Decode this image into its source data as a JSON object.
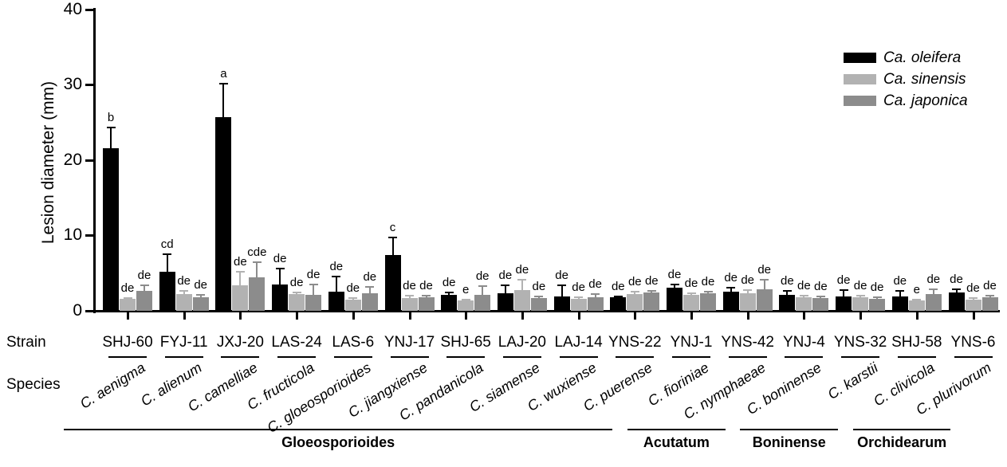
{
  "axis_rows": {
    "strain": "Strain",
    "species": "Species"
  },
  "legend": {
    "position": "top-right",
    "items": [
      {
        "label": "Ca. oleifera",
        "color": "#000000"
      },
      {
        "label": "Ca. sinensis",
        "color": "#b2b2b2"
      },
      {
        "label": "Ca. japonica",
        "color": "#8c8c8c"
      }
    ]
  },
  "chart_data": {
    "type": "bar",
    "title": "",
    "xlabel": "",
    "ylabel": "Lesion diameter (mm)",
    "ylim": [
      0,
      40
    ],
    "yticks": [
      0,
      10,
      20,
      30,
      40
    ],
    "grid": false,
    "legend_position": "top-right",
    "error_bars": "upper, with caps",
    "significance_letters": "shown above error bars",
    "categories": [
      "SHJ-60",
      "FYJ-11",
      "JXJ-20",
      "LAS-24",
      "LAS-6",
      "YNJ-17",
      "SHJ-65",
      "LAJ-20",
      "LAJ-14",
      "YNS-22",
      "YNJ-1",
      "YNS-42",
      "YNJ-4",
      "YNS-32",
      "SHJ-58",
      "YNS-6"
    ],
    "species": [
      "C. aenigma",
      "C. alienum",
      "C. camelliae",
      "C. fructicola",
      "C. gloeosporioides",
      "C. jiangxiense",
      "C. pandanicola",
      "C. siamense",
      "C. wuxiense",
      "C. puerense",
      "C. fioriniae",
      "C. nymphaeae",
      "C. boninense",
      "C. karstii",
      "C. clivicola",
      "C. plurivorum"
    ],
    "series": [
      {
        "name": "Ca. oleifera",
        "color": "#000000",
        "values": [
          21.6,
          5.2,
          25.7,
          3.5,
          2.5,
          7.4,
          2.1,
          2.3,
          1.9,
          1.8,
          3.1,
          2.5,
          2.1,
          1.9,
          1.9,
          2.4
        ],
        "errors": [
          2.8,
          2.4,
          4.5,
          2.2,
          2.2,
          2.4,
          0.4,
          1.2,
          1.6,
          0.2,
          0.5,
          0.7,
          0.6,
          1.0,
          0.9,
          0.6
        ],
        "letters": [
          "b",
          "cd",
          "a",
          "de",
          "de",
          "c",
          "de",
          "de",
          "de",
          "de",
          "de",
          "de",
          "de",
          "de",
          "de",
          "de"
        ]
      },
      {
        "name": "Ca. sinensis",
        "color": "#b2b2b2",
        "values": [
          1.6,
          2.2,
          3.4,
          2.2,
          1.5,
          1.7,
          1.4,
          2.8,
          1.6,
          2.2,
          2.1,
          2.3,
          1.8,
          1.8,
          1.4,
          1.5
        ],
        "errors": [
          0.2,
          0.6,
          1.9,
          0.3,
          0.3,
          0.4,
          0.2,
          1.4,
          0.3,
          0.4,
          0.3,
          0.6,
          0.3,
          0.3,
          0.2,
          0.3
        ],
        "letters": [
          "de",
          "de",
          "de",
          "de",
          "de",
          "de",
          "e",
          "de",
          "de",
          "de",
          "de",
          "de",
          "de",
          "de",
          "e",
          "de"
        ]
      },
      {
        "name": "Ca. japonica",
        "color": "#8c8c8c",
        "values": [
          2.6,
          1.8,
          4.4,
          2.1,
          2.3,
          1.8,
          2.1,
          1.7,
          1.8,
          2.4,
          2.3,
          2.9,
          1.7,
          1.6,
          2.2,
          1.8
        ],
        "errors": [
          0.9,
          0.4,
          2.2,
          1.5,
          1.0,
          0.3,
          1.3,
          0.3,
          0.5,
          0.4,
          0.3,
          1.3,
          0.3,
          0.3,
          0.8,
          0.3
        ],
        "letters": [
          "de",
          "de",
          "cde",
          "de",
          "de",
          "de",
          "de",
          "de",
          "de",
          "de",
          "de",
          "de",
          "de",
          "de",
          "de",
          "de"
        ]
      }
    ],
    "complexes": [
      {
        "label": "Gloeosporioides",
        "from": 0,
        "to": 9
      },
      {
        "label": "Acutatum",
        "from": 10,
        "to": 11
      },
      {
        "label": "Boninense",
        "from": 12,
        "to": 13
      },
      {
        "label": "Orchidearum",
        "from": 14,
        "to": 15
      }
    ]
  }
}
